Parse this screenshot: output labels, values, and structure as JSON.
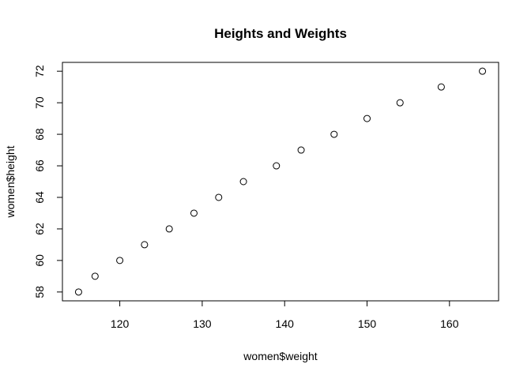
{
  "chart_data": {
    "type": "scatter",
    "title": "Heights and Weights",
    "xlabel": "women$weight",
    "ylabel": "women$height",
    "xlim": [
      113.04,
      165.96
    ],
    "ylim": [
      57.44,
      72.56
    ],
    "x_ticks": [
      120,
      130,
      140,
      150,
      160
    ],
    "y_ticks": [
      58,
      60,
      62,
      64,
      66,
      68,
      70,
      72
    ],
    "grid": false,
    "marker": "open-circle",
    "point_color": "#000000",
    "x": [
      115,
      117,
      120,
      123,
      126,
      129,
      132,
      135,
      139,
      142,
      146,
      150,
      154,
      159,
      164
    ],
    "y": [
      58,
      59,
      60,
      61,
      62,
      63,
      64,
      65,
      66,
      67,
      68,
      69,
      70,
      71,
      72
    ]
  }
}
